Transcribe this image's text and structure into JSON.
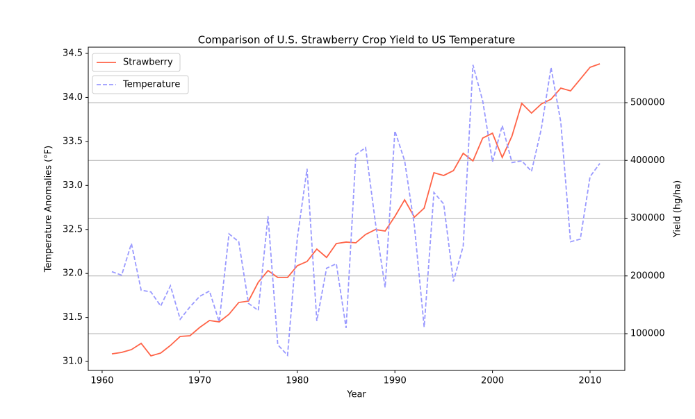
{
  "chart_data": {
    "type": "line",
    "title": "Comparison of U.S. Strawberry Crop Yield to US Temperature",
    "xlabel": "Year",
    "ylabel": "Temperature Anomalies (°F)",
    "y2label": "Yield (hg/ha)",
    "x": [
      1961,
      1962,
      1963,
      1964,
      1965,
      1966,
      1967,
      1968,
      1969,
      1970,
      1971,
      1972,
      1973,
      1974,
      1975,
      1976,
      1977,
      1978,
      1979,
      1980,
      1981,
      1982,
      1983,
      1984,
      1985,
      1986,
      1987,
      1988,
      1989,
      1990,
      1991,
      1992,
      1993,
      1994,
      1995,
      1996,
      1997,
      1998,
      1999,
      2000,
      2001,
      2002,
      2003,
      2004,
      2005,
      2006,
      2007,
      2008,
      2009,
      2010,
      2011
    ],
    "series": [
      {
        "name": "Strawberry",
        "color": "#ff6347",
        "linestyle": "solid",
        "axis": "y2",
        "values": [
          65000,
          67600,
          72400,
          83200,
          61600,
          66400,
          79600,
          95200,
          96400,
          110800,
          122800,
          120400,
          133600,
          154000,
          156500,
          189000,
          209300,
          197300,
          197300,
          217700,
          225000,
          246500,
          232000,
          256000,
          258600,
          257400,
          271800,
          280200,
          277800,
          303000,
          331800,
          301800,
          317400,
          378700,
          373900,
          382300,
          412300,
          399100,
          438700,
          447100,
          405100,
          442300,
          498800,
          482000,
          497600,
          506000,
          525200,
          520400,
          540800,
          561300,
          567300
        ]
      },
      {
        "name": "Temperature",
        "color": "#9999ff",
        "linestyle": "dashed",
        "axis": "y",
        "values": [
          32.02,
          31.98,
          32.34,
          31.81,
          31.79,
          31.63,
          31.86,
          31.48,
          31.62,
          31.74,
          31.8,
          31.45,
          32.45,
          32.36,
          31.66,
          31.58,
          32.65,
          31.19,
          31.07,
          32.4,
          33.19,
          31.46,
          32.06,
          32.11,
          31.38,
          33.35,
          33.43,
          32.58,
          31.84,
          33.62,
          33.28,
          32.54,
          31.39,
          32.92,
          32.79,
          31.91,
          32.31,
          34.37,
          33.96,
          33.27,
          33.68,
          33.26,
          33.28,
          33.16,
          33.64,
          34.34,
          33.72,
          32.36,
          32.39,
          33.1,
          33.25
        ]
      }
    ],
    "xlim": [
      1958.58,
      2013.56
    ],
    "xticks": [
      1960,
      1970,
      1980,
      1990,
      2000,
      2010
    ],
    "ylim": [
      30.898,
      34.571
    ],
    "yticks": [
      {
        "value": 31,
        "label": "31.0"
      },
      {
        "value": 31.5,
        "label": "31.5"
      },
      {
        "value": 32,
        "label": "32.0"
      },
      {
        "value": 32.5,
        "label": "32.5"
      },
      {
        "value": 33,
        "label": "33.0"
      },
      {
        "value": 33.5,
        "label": "33.5"
      },
      {
        "value": 34,
        "label": "34.0"
      },
      {
        "value": 34.5,
        "label": "34.5"
      }
    ],
    "y2lim": [
      36336,
      596100
    ],
    "y2ticks": [
      100000,
      200000,
      300000,
      400000,
      500000
    ],
    "grid": "y2",
    "legend": "upper left"
  }
}
